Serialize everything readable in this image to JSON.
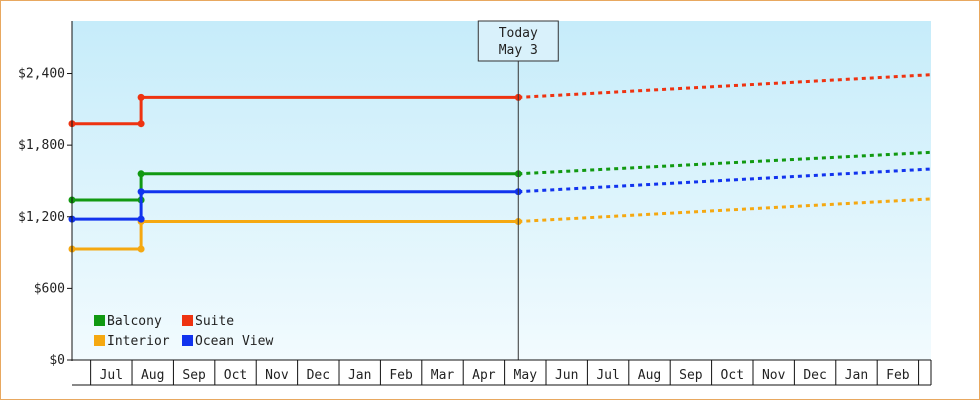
{
  "chart_data": {
    "type": "line",
    "today": {
      "label": "Today",
      "date": "May 3"
    },
    "yticks": [
      {
        "value": 0,
        "label": "$0"
      },
      {
        "value": 600,
        "label": "$600"
      },
      {
        "value": 1200,
        "label": "$1,200"
      },
      {
        "value": 1800,
        "label": "$1,800"
      },
      {
        "value": 2400,
        "label": "$2,400"
      }
    ],
    "ylim": [
      0,
      2840
    ],
    "months": [
      "Jul",
      "Aug",
      "Sep",
      "Oct",
      "Nov",
      "Dec",
      "Jan",
      "Feb",
      "Mar",
      "Apr",
      "May",
      "Jun",
      "Jul",
      "Aug",
      "Sep",
      "Oct",
      "Nov",
      "Dec",
      "Jan",
      "Feb"
    ],
    "x_unit": "month index (0 = start of Jul)",
    "xlim": [
      -0.45,
      20.3
    ],
    "grid": false,
    "legend_position": "bottom-left",
    "colors": {
      "Balcony": "#119911",
      "Suite": "#ee3311",
      "Interior": "#f5a811",
      "Ocean View": "#1133ee",
      "background_top": "#c6ecfa",
      "background_bottom": "#f2fbfe",
      "border": "#e8a860"
    },
    "series": [
      {
        "name": "Balcony",
        "history": [
          [
            -0.45,
            1340
          ],
          [
            1.22,
            1340
          ],
          [
            1.22,
            1560
          ],
          [
            10.33,
            1560
          ]
        ],
        "forecast": [
          [
            10.33,
            1560
          ],
          [
            20.3,
            1740
          ]
        ]
      },
      {
        "name": "Suite",
        "history": [
          [
            -0.45,
            1980
          ],
          [
            1.22,
            1980
          ],
          [
            1.22,
            2200
          ],
          [
            10.33,
            2200
          ]
        ],
        "forecast": [
          [
            10.33,
            2200
          ],
          [
            20.3,
            2390
          ]
        ]
      },
      {
        "name": "Interior",
        "history": [
          [
            -0.45,
            930
          ],
          [
            1.22,
            930
          ],
          [
            1.22,
            1160
          ],
          [
            10.33,
            1160
          ]
        ],
        "forecast": [
          [
            10.33,
            1160
          ],
          [
            20.3,
            1350
          ]
        ]
      },
      {
        "name": "Ocean View",
        "history": [
          [
            -0.45,
            1180
          ],
          [
            1.22,
            1180
          ],
          [
            1.22,
            1410
          ],
          [
            10.33,
            1410
          ]
        ],
        "forecast": [
          [
            10.33,
            1410
          ],
          [
            20.3,
            1600
          ]
        ]
      }
    ],
    "legend_order": [
      "Balcony",
      "Suite",
      "Interior",
      "Ocean View"
    ]
  }
}
